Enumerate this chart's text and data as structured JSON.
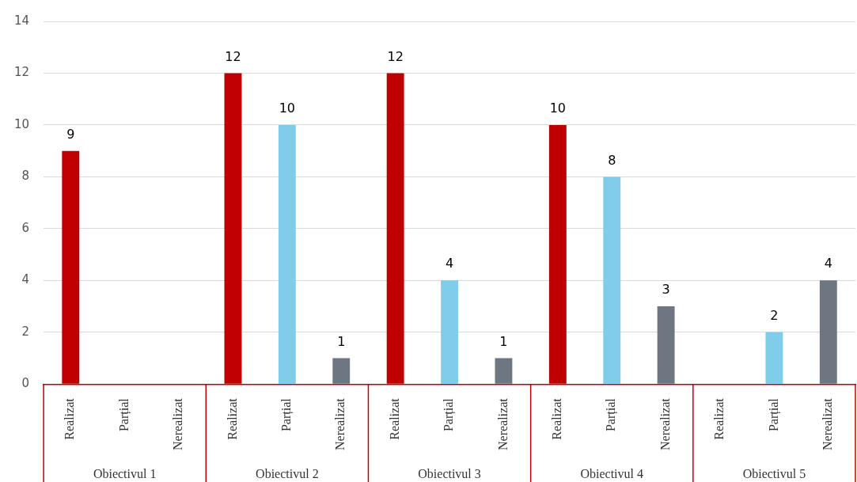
{
  "chart_data": {
    "type": "bar",
    "categories": [
      "Realizat",
      "Parțial",
      "Nerealizat",
      "Realizat",
      "Parțial",
      "Nerealizat",
      "Realizat",
      "Parțial",
      "Nerealizat",
      "Realizat",
      "Parțial",
      "Nerealizat",
      "Realizat",
      "Parțial",
      "Nerealizat"
    ],
    "values": [
      9,
      null,
      null,
      12,
      10,
      1,
      12,
      4,
      1,
      10,
      8,
      3,
      null,
      2,
      4
    ],
    "colors": [
      "#c00000",
      "#7fcdeb",
      "#6e7781",
      "#c00000",
      "#7fcdeb",
      "#6e7781",
      "#c00000",
      "#7fcdeb",
      "#6e7781",
      "#c00000",
      "#7fcdeb",
      "#6e7781",
      "#c00000",
      "#7fcdeb",
      "#6e7781"
    ],
    "annotations": [
      "Obiectivul 1",
      "Obiectivul 2",
      "Obiectivul 3",
      "Obiectivul 4",
      "Obiectivul 5"
    ],
    "ylim": [
      0,
      14
    ],
    "yticks": [
      0,
      2,
      4,
      6,
      8,
      10,
      12,
      14
    ],
    "grid": "y",
    "data_labels": true
  }
}
